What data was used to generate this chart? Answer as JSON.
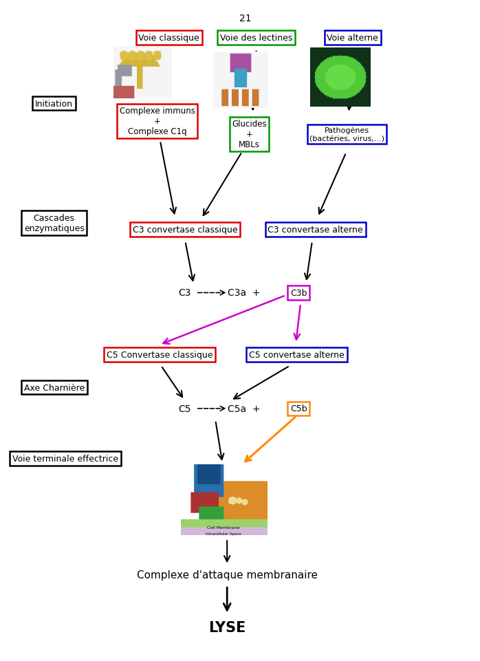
{
  "title_number": "21",
  "background_color": "#ffffff",
  "fig_width": 6.98,
  "fig_height": 9.62,
  "labels": {
    "voie_classique": "Voie classique",
    "voie_lectines": "Voie des lectines",
    "voie_alterne": "Voie alterne",
    "initiation": "Initiation",
    "complexe_immuns": "Complexe immuns\n+\nComplexe C1q",
    "glucides_mbls": "Glucides\n+\nMBLs",
    "pathogenes": "Pathogènes\n(bactéries, virus,...)",
    "cascades": "Cascades\nenzymatiques",
    "c3_convertase_classique": "C3 convertase classique",
    "c3_convertase_alterne": "C3 convertase alterne",
    "c3b": "C3b",
    "c5_convertase_classique": "C5 Convertase classique",
    "c5_convertase_alterne": "C5 convertase alterne",
    "axe_charniere": "Axe Charnière",
    "c5b": "C5b",
    "voie_terminale": "Voie terminale effectrice",
    "complexe_attaque": "Complexe d'attaque membranaire",
    "lyse": "LYSE"
  },
  "box_colors": {
    "voie_classique": "#dd0000",
    "voie_lectines": "#009900",
    "voie_alterne": "#0000cc",
    "initiation": "#000000",
    "complexe_immuns": "#dd0000",
    "glucides_mbls": "#009900",
    "pathogenes": "#0000cc",
    "cascades": "#000000",
    "c3_convertase_classique": "#dd0000",
    "c3_convertase_alterne": "#0000cc",
    "c5_convertase_classique": "#dd0000",
    "c5_convertase_alterne": "#0000cc",
    "axe_charniere": "#000000",
    "c3b": "#cc00cc",
    "c5b": "#ff8800",
    "voie_terminale": "#000000"
  }
}
